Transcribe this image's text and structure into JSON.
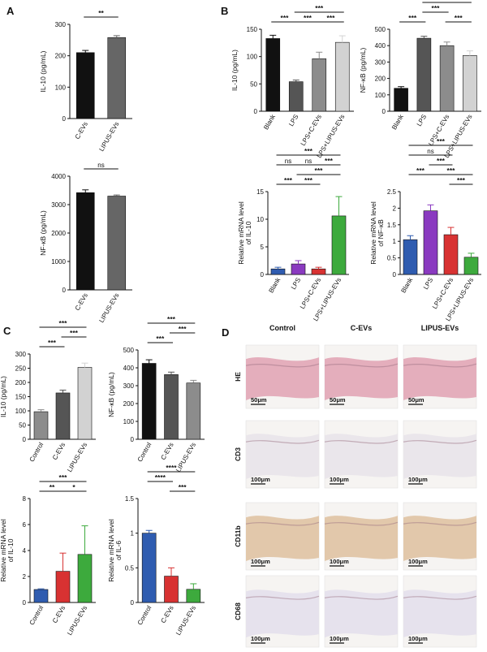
{
  "panel_labels": [
    "A",
    "B",
    "C",
    "D"
  ],
  "histology": {
    "columns": [
      "Control",
      "C-EVs",
      "LIPUS-EVs"
    ],
    "rows": [
      {
        "label": "HE",
        "scale": "50μm",
        "tint": "#e2a6b6"
      },
      {
        "label": "CD3",
        "scale": "100μm",
        "tint": "#e9e4ea"
      },
      {
        "label": "CD11b",
        "scale": "100μm",
        "tint": "#e0c3a3"
      },
      {
        "label": "CD68",
        "scale": "100μm",
        "tint": "#e4e0ec"
      }
    ]
  },
  "chart_data": [
    {
      "id": "A1",
      "type": "bar",
      "categories": [
        "C-EVs",
        "LIPUS-EVs"
      ],
      "values": [
        210,
        258
      ],
      "errors": [
        7,
        6
      ],
      "colors": [
        "#111111",
        "#666666"
      ],
      "ylabel": "IL-10 (pg/mL)",
      "ylim": [
        0,
        300
      ],
      "yticks": [
        0,
        100,
        200,
        300
      ],
      "sig": [
        {
          "a": 0,
          "b": 1,
          "label": "**",
          "row": 0
        }
      ]
    },
    {
      "id": "A2",
      "type": "bar",
      "categories": [
        "C-EVs",
        "LIPUS-EVs"
      ],
      "values": [
        3420,
        3300
      ],
      "errors": [
        100,
        40
      ],
      "colors": [
        "#111111",
        "#666666"
      ],
      "ylabel": "NF-κB (pg/mL)",
      "ylim": [
        0,
        4000
      ],
      "yticks": [
        0,
        1000,
        2000,
        3000,
        4000
      ],
      "sig": [
        {
          "a": 0,
          "b": 1,
          "label": "ns",
          "row": 0
        }
      ]
    },
    {
      "id": "B1",
      "type": "bar",
      "categories": [
        "Blank",
        "LPS",
        "LPS+C-EVs",
        "LPS+LIPUS-EVs"
      ],
      "values": [
        133,
        54,
        96,
        126
      ],
      "errors": [
        6,
        3,
        12,
        12
      ],
      "colors": [
        "#111111",
        "#555555",
        "#8c8c8c",
        "#d2d2d2"
      ],
      "ylabel": "IL-10 (pg/mL)",
      "ylim": [
        0,
        150
      ],
      "yticks": [
        0,
        50,
        100,
        150
      ],
      "sig": [
        {
          "a": 0,
          "b": 1,
          "label": "***",
          "row": 0
        },
        {
          "a": 1,
          "b": 2,
          "label": "***",
          "row": 0
        },
        {
          "a": 2,
          "b": 3,
          "label": "***",
          "row": 0
        },
        {
          "a": 1,
          "b": 3,
          "label": "***",
          "row": 1
        }
      ]
    },
    {
      "id": "B2",
      "type": "bar",
      "categories": [
        "Blank",
        "LPS",
        "LPS+C-EVs",
        "LPS+LIPUS-EVs"
      ],
      "values": [
        140,
        445,
        400,
        340
      ],
      "errors": [
        10,
        12,
        22,
        28
      ],
      "colors": [
        "#111111",
        "#555555",
        "#8c8c8c",
        "#d2d2d2"
      ],
      "ylabel": "NF-κB (pg/mL)",
      "ylim": [
        0,
        500
      ],
      "yticks": [
        0,
        100,
        200,
        300,
        400,
        500
      ],
      "sig": [
        {
          "a": 0,
          "b": 1,
          "label": "***",
          "row": 0
        },
        {
          "a": 2,
          "b": 3,
          "label": "***",
          "row": 0
        },
        {
          "a": 1,
          "b": 2,
          "label": "***",
          "row": 1
        },
        {
          "a": 1,
          "b": 3,
          "label": "***",
          "row": 2
        }
      ]
    },
    {
      "id": "B3",
      "type": "bar",
      "categories": [
        "Blank",
        "LPS",
        "LPS+C-EVs",
        "LPS+LIPUS-EVs"
      ],
      "values": [
        1.0,
        1.9,
        1.0,
        10.6
      ],
      "errors": [
        0.3,
        0.6,
        0.3,
        3.5
      ],
      "colors": [
        "#2f5cb0",
        "#8a3ac0",
        "#d83232",
        "#3daa3d"
      ],
      "ylabel": "Relative mRNA level",
      "ylabel2": "of IL-10",
      "ylim": [
        0,
        15
      ],
      "yticks": [
        0,
        5,
        10,
        15
      ],
      "sig": [
        {
          "a": 0,
          "b": 1,
          "label": "***",
          "row": 0
        },
        {
          "a": 1,
          "b": 2,
          "label": "***",
          "row": 0
        },
        {
          "a": 1,
          "b": 3,
          "label": "***",
          "row": 1
        },
        {
          "a": 0,
          "b": 1,
          "label": "ns",
          "row": 2
        },
        {
          "a": 1,
          "b": 2,
          "label": "ns",
          "row": 2
        },
        {
          "a": 2,
          "b": 3,
          "label": "***",
          "row": 2
        },
        {
          "a": 0,
          "b": 3,
          "label": "***",
          "row": 3
        }
      ]
    },
    {
      "id": "B4",
      "type": "bar",
      "categories": [
        "Blank",
        "LPS",
        "LPS+C-EVs",
        "LPS+LIPUS-EVs"
      ],
      "values": [
        1.05,
        1.92,
        1.2,
        0.52
      ],
      "errors": [
        0.12,
        0.18,
        0.22,
        0.12
      ],
      "colors": [
        "#2f5cb0",
        "#8a3ac0",
        "#d83232",
        "#3daa3d"
      ],
      "ylabel": "Relative mRNA level",
      "ylabel2": "of NF-κB",
      "ylim": [
        0,
        2.5
      ],
      "yticks": [
        0,
        0.5,
        1.0,
        1.5,
        2.0,
        2.5
      ],
      "sig": [
        {
          "a": 2,
          "b": 3,
          "label": "***",
          "row": 0
        },
        {
          "a": 0,
          "b": 1,
          "label": "***",
          "row": 1
        },
        {
          "a": 1,
          "b": 3,
          "label": "***",
          "row": 1
        },
        {
          "a": 1,
          "b": 2,
          "label": "***",
          "row": 2
        },
        {
          "a": 0,
          "b": 2,
          "label": "ns",
          "row": 3
        },
        {
          "a": 0,
          "b": 3,
          "label": "***",
          "row": 4
        }
      ]
    },
    {
      "id": "C1",
      "type": "bar",
      "categories": [
        "Control",
        "C-EVs",
        "LIPUS-EVs"
      ],
      "values": [
        97,
        163,
        253
      ],
      "errors": [
        7,
        10,
        15
      ],
      "colors": [
        "#8c8c8c",
        "#555555",
        "#d2d2d2"
      ],
      "ylabel": "IL-10 (pg/mL)",
      "ylim": [
        0,
        300
      ],
      "yticks": [
        0,
        50,
        100,
        150,
        200,
        250,
        300
      ],
      "sig": [
        {
          "a": 0,
          "b": 1,
          "label": "***",
          "row": 0
        },
        {
          "a": 1,
          "b": 2,
          "label": "***",
          "row": 1
        },
        {
          "a": 0,
          "b": 2,
          "label": "***",
          "row": 2
        }
      ]
    },
    {
      "id": "C2",
      "type": "bar",
      "categories": [
        "Control",
        "C-EVs",
        "LIPUS-EVs"
      ],
      "values": [
        425,
        362,
        315
      ],
      "errors": [
        20,
        14,
        15
      ],
      "colors": [
        "#111111",
        "#555555",
        "#8c8c8c"
      ],
      "ylabel": "NF-κB (pg/mL)",
      "ylim": [
        0,
        500
      ],
      "yticks": [
        0,
        100,
        200,
        300,
        400,
        500
      ],
      "sig": [
        {
          "a": 0,
          "b": 1,
          "label": "***",
          "row": 0
        },
        {
          "a": 1,
          "b": 2,
          "label": "***",
          "row": 1
        },
        {
          "a": 0,
          "b": 2,
          "label": "***",
          "row": 2
        }
      ]
    },
    {
      "id": "C3",
      "type": "bar",
      "categories": [
        "Control",
        "C-EVs",
        "LIPUS-EVs"
      ],
      "values": [
        1.0,
        2.4,
        3.7
      ],
      "errors": [
        0.05,
        1.4,
        2.2
      ],
      "colors": [
        "#2f5cb0",
        "#d83232",
        "#3daa3d"
      ],
      "ylabel": "Relative mRNA level",
      "ylabel2": "of IL-10",
      "ylim": [
        0,
        8
      ],
      "yticks": [
        0,
        2,
        4,
        6,
        8
      ],
      "sig": [
        {
          "a": 0,
          "b": 1,
          "label": "**",
          "row": 0
        },
        {
          "a": 1,
          "b": 2,
          "label": "*",
          "row": 0
        },
        {
          "a": 0,
          "b": 2,
          "label": "***",
          "row": 1
        }
      ]
    },
    {
      "id": "C4",
      "type": "bar",
      "categories": [
        "Control",
        "C-EVs",
        "LIPUS-EVs"
      ],
      "values": [
        1.0,
        0.38,
        0.19
      ],
      "errors": [
        0.04,
        0.12,
        0.08
      ],
      "colors": [
        "#2f5cb0",
        "#d83232",
        "#3daa3d"
      ],
      "ylabel": "Relative mRNA level",
      "ylabel2": "of IL-6",
      "ylim": [
        0,
        1.5
      ],
      "yticks": [
        0,
        0.5,
        1.0,
        1.5
      ],
      "sig": [
        {
          "a": 1,
          "b": 2,
          "label": "***",
          "row": 0
        },
        {
          "a": 0,
          "b": 1,
          "label": "****",
          "row": 1
        },
        {
          "a": 0,
          "b": 2,
          "label": "****",
          "row": 2
        }
      ]
    }
  ]
}
